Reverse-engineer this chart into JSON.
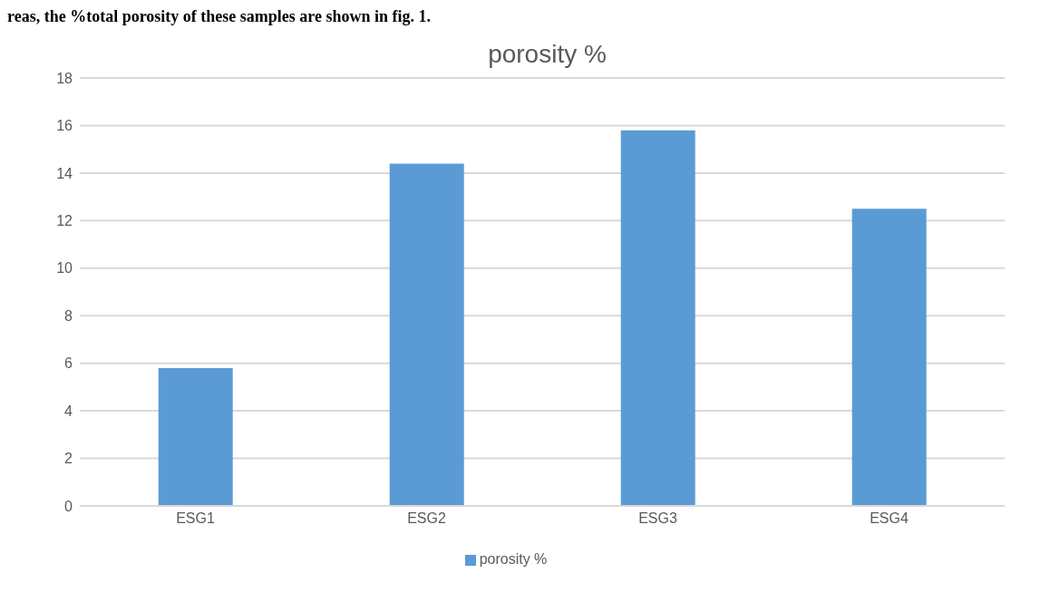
{
  "chart_data": {
    "type": "bar",
    "title": "porosity %",
    "annotations": [
      "reas, the %total porosity of these samples are shown in fig. 1."
    ],
    "categories": [
      "ESG1",
      "ESG2",
      "ESG3",
      "ESG4"
    ],
    "series": [
      {
        "name": "porosity %",
        "color": "#5b9bd5",
        "values": [
          5.8,
          14.4,
          15.8,
          12.5
        ]
      }
    ],
    "ylim": [
      0,
      18
    ],
    "yticks": [
      0,
      2,
      4,
      6,
      8,
      10,
      12,
      14,
      16,
      18
    ],
    "grid": "y",
    "legend": "bottom"
  }
}
